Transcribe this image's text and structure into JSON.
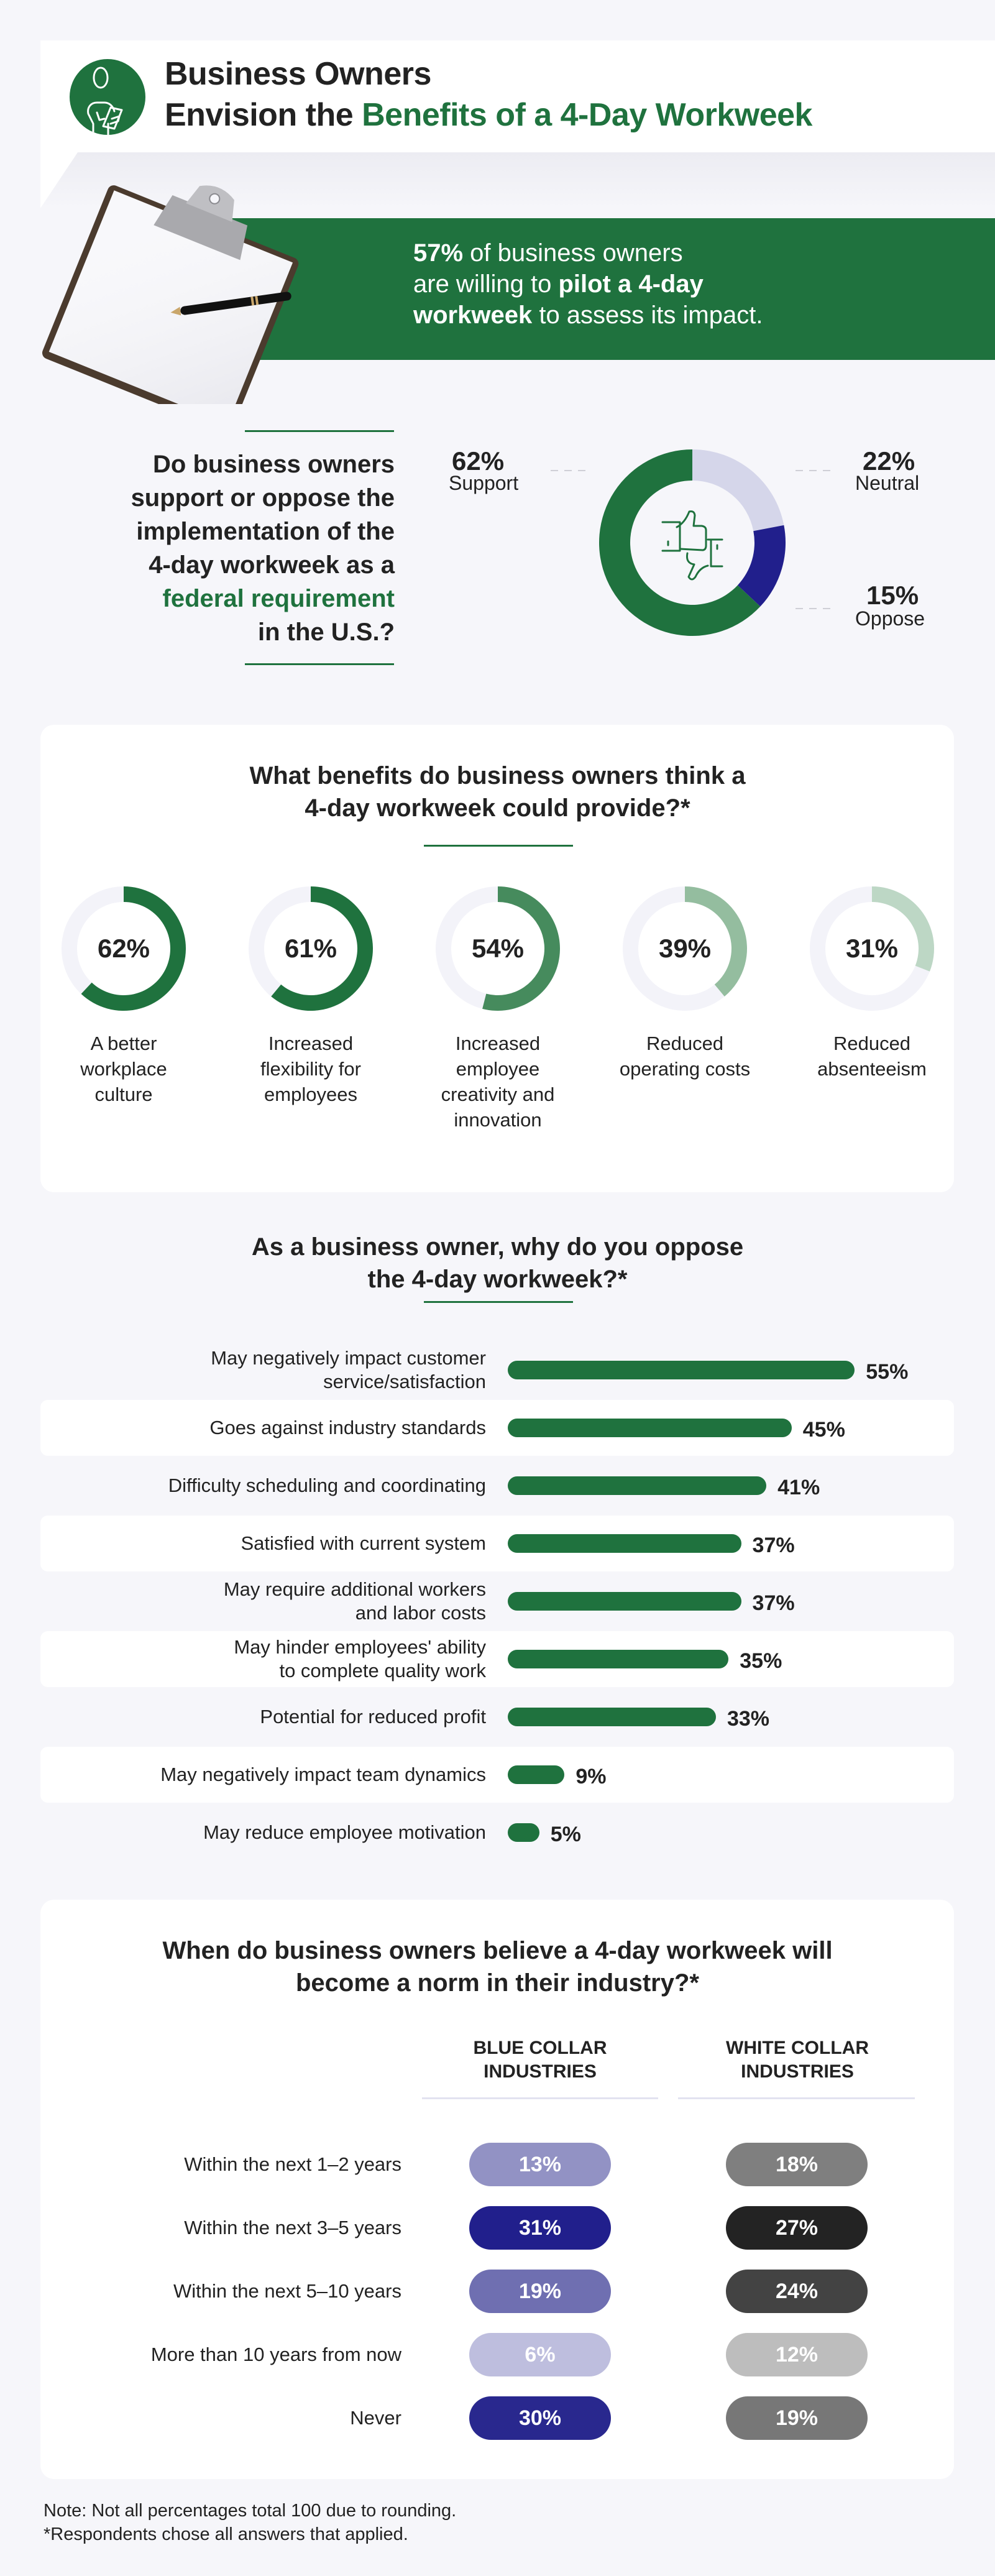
{
  "colors": {
    "background": "#f6f6fa",
    "brand_green": "#1f723e",
    "text": "#222222",
    "neutral": "#d5d6ea",
    "oppose": "#211f8c",
    "ring_track": "#f3f3f9"
  },
  "header": {
    "icon": "business-owner-clipboard-icon",
    "title_line1": "Business Owners",
    "title_line2_plain": "Envision the ",
    "title_line2_accent": "Benefits of a 4-Day Workweek"
  },
  "banner": {
    "image": "clipboard-with-pen",
    "pct": "57%",
    "text1": " of business owners",
    "text2": "are willing to ",
    "bold2": "pilot a 4-day",
    "bold3": "workweek",
    "text3": " to assess its impact."
  },
  "federal": {
    "q_line1": "Do business owners",
    "q_line2": "support or oppose the",
    "q_line3": "implementation of the",
    "q_line4": "4-day workweek as a",
    "q_accent": "federal requirement",
    "q_line6": "in the U.S.?",
    "center_icon": "thumbs-up-down-icon",
    "support": {
      "pct": "62%",
      "label": "Support"
    },
    "neutral": {
      "pct": "22%",
      "label": "Neutral"
    },
    "oppose": {
      "pct": "15%",
      "label": "Oppose"
    }
  },
  "benefits": {
    "title_line1": "What benefits do business owners think a",
    "title_line2": "4-day workweek could provide?*",
    "items": [
      {
        "pct": "62%",
        "value": 62,
        "color": "#1f723e",
        "l1": "A better",
        "l2": "workplace",
        "l3": "culture",
        "l4": ""
      },
      {
        "pct": "61%",
        "value": 61,
        "color": "#1f723e",
        "l1": "Increased",
        "l2": "flexibility for",
        "l3": "employees",
        "l4": ""
      },
      {
        "pct": "54%",
        "value": 54,
        "color": "#468b5d",
        "l1": "Increased",
        "l2": "employee",
        "l3": "creativity and",
        "l4": "innovation"
      },
      {
        "pct": "39%",
        "value": 39,
        "color": "#94bd9f",
        "l1": "Reduced",
        "l2": "operating costs",
        "l3": "",
        "l4": ""
      },
      {
        "pct": "31%",
        "value": 31,
        "color": "#bdd7c5",
        "l1": "Reduced",
        "l2": "absenteeism",
        "l3": "",
        "l4": ""
      }
    ]
  },
  "oppose": {
    "title_line1": "As a business owner, why do you oppose",
    "title_line2": "the 4-day workweek?*",
    "items": [
      {
        "l1": "May negatively impact customer",
        "l2": "service/satisfaction",
        "pct": "55%",
        "value": 55
      },
      {
        "l1": "Goes against industry standards",
        "l2": "",
        "pct": "45%",
        "value": 45
      },
      {
        "l1": "Difficulty scheduling and coordinating",
        "l2": "",
        "pct": "41%",
        "value": 41
      },
      {
        "l1": "Satisfied with current system",
        "l2": "",
        "pct": "37%",
        "value": 37
      },
      {
        "l1": "May require additional workers",
        "l2": "and labor costs",
        "pct": "37%",
        "value": 37
      },
      {
        "l1": "May hinder employees' ability",
        "l2": "to complete quality work",
        "pct": "35%",
        "value": 35
      },
      {
        "l1": "Potential for reduced profit",
        "l2": "",
        "pct": "33%",
        "value": 33
      },
      {
        "l1": "May negatively impact team dynamics",
        "l2": "",
        "pct": "9%",
        "value": 9
      },
      {
        "l1": "May reduce employee motivation",
        "l2": "",
        "pct": "5%",
        "value": 5
      }
    ]
  },
  "norm": {
    "title_line1": "When do business owners believe a 4-day workweek will",
    "title_line2": "become a norm in their industry?*",
    "col_blue_l1": "BLUE COLLAR",
    "col_blue_l2": "INDUSTRIES",
    "col_white_l1": "WHITE COLLAR",
    "col_white_l2": "INDUSTRIES",
    "rows": [
      {
        "label": "Within the next 1–2 years",
        "blue": "13%",
        "white": "18%",
        "blue_color": "#9292c4",
        "white_color": "#7f7f7f"
      },
      {
        "label": "Within the next 3–5 years",
        "blue": "31%",
        "white": "27%",
        "blue_color": "#211f8c",
        "white_color": "#232323"
      },
      {
        "label": "Within the next 5–10 years",
        "blue": "19%",
        "white": "24%",
        "blue_color": "#6f6fb1",
        "white_color": "#434343"
      },
      {
        "label": "More than 10 years from now",
        "blue": "6%",
        "white": "12%",
        "blue_color": "#bebede",
        "white_color": "#bdbdbd"
      },
      {
        "label": "Never",
        "blue": "30%",
        "white": "19%",
        "blue_color": "#29288e",
        "white_color": "#777777"
      }
    ]
  },
  "footer": {
    "note": "Note: Not all percentages total 100 due to rounding.",
    "asterisk": "*Respondents chose all answers that applied."
  },
  "chart_data": [
    {
      "type": "pie",
      "title": "Do business owners support or oppose the implementation of the 4-day workweek as a federal requirement in the U.S.?",
      "categories": [
        "Support",
        "Neutral",
        "Oppose"
      ],
      "values": [
        62,
        22,
        15
      ],
      "unit": "%"
    },
    {
      "type": "pie",
      "title": "What benefits do business owners think a 4-day workweek could provide?*",
      "categories": [
        "A better workplace culture",
        "Increased flexibility for employees",
        "Increased employee creativity and innovation",
        "Reduced operating costs",
        "Reduced absenteeism"
      ],
      "values": [
        62,
        61,
        54,
        39,
        31
      ],
      "unit": "%"
    },
    {
      "type": "bar",
      "orientation": "horizontal",
      "title": "As a business owner, why do you oppose the 4-day workweek?*",
      "categories": [
        "May negatively impact customer service/satisfaction",
        "Goes against industry standards",
        "Difficulty scheduling and coordinating",
        "Satisfied with current system",
        "May require additional workers and labor costs",
        "May hinder employees' ability to complete quality work",
        "Potential for reduced profit",
        "May negatively impact team dynamics",
        "May reduce employee motivation"
      ],
      "values": [
        55,
        45,
        41,
        37,
        37,
        35,
        33,
        9,
        5
      ],
      "unit": "%"
    },
    {
      "type": "table",
      "title": "When do business owners believe a 4-day workweek will become a norm in their industry?*",
      "categories": [
        "Within the next 1–2 years",
        "Within the next 3–5 years",
        "Within the next 5–10 years",
        "More than 10 years from now",
        "Never"
      ],
      "series": [
        {
          "name": "Blue Collar Industries",
          "values": [
            13,
            31,
            19,
            6,
            30
          ]
        },
        {
          "name": "White Collar Industries",
          "values": [
            18,
            27,
            24,
            12,
            19
          ]
        }
      ],
      "unit": "%"
    }
  ]
}
